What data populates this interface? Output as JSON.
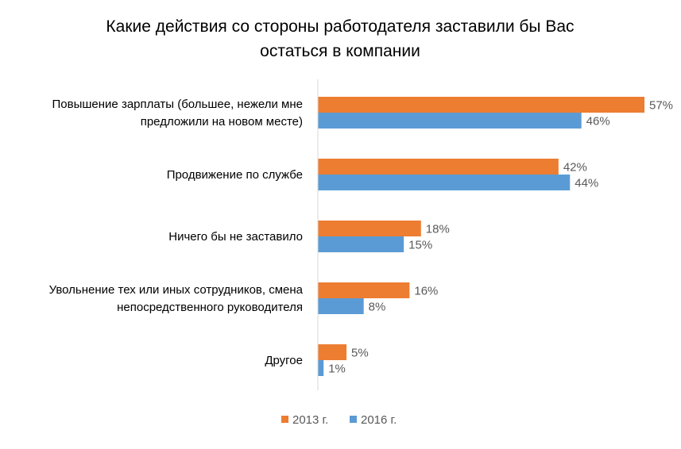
{
  "chart_data": {
    "type": "bar",
    "orientation": "horizontal",
    "title_lines": [
      "Какие действия со стороны работодателя заставили бы Вас",
      "остаться в компании"
    ],
    "categories": [
      [
        "Повышение зарплаты (большее, нежели мне",
        "предложили на новом месте)"
      ],
      [
        "Продвижение по службе"
      ],
      [
        "Ничего бы не заставило"
      ],
      [
        "Увольнение тех или иных сотрудников, смена",
        "непосредственного руководителя"
      ],
      [
        "Другое"
      ]
    ],
    "series": [
      {
        "name": "2013 г.",
        "color": "#ED7D31",
        "values": [
          57,
          42,
          18,
          16,
          5
        ],
        "labels": [
          "57%",
          "42%",
          "18%",
          "16%",
          "5%"
        ]
      },
      {
        "name": "2016 г.",
        "color": "#5B9BD5",
        "values": [
          46,
          44,
          15,
          8,
          1
        ],
        "labels": [
          "46%",
          "44%",
          "15%",
          "8%",
          "1%"
        ]
      }
    ],
    "xlim": [
      0,
      57
    ],
    "grid": false,
    "legend_position": "bottom",
    "axis_color": "#D9D9D9"
  }
}
